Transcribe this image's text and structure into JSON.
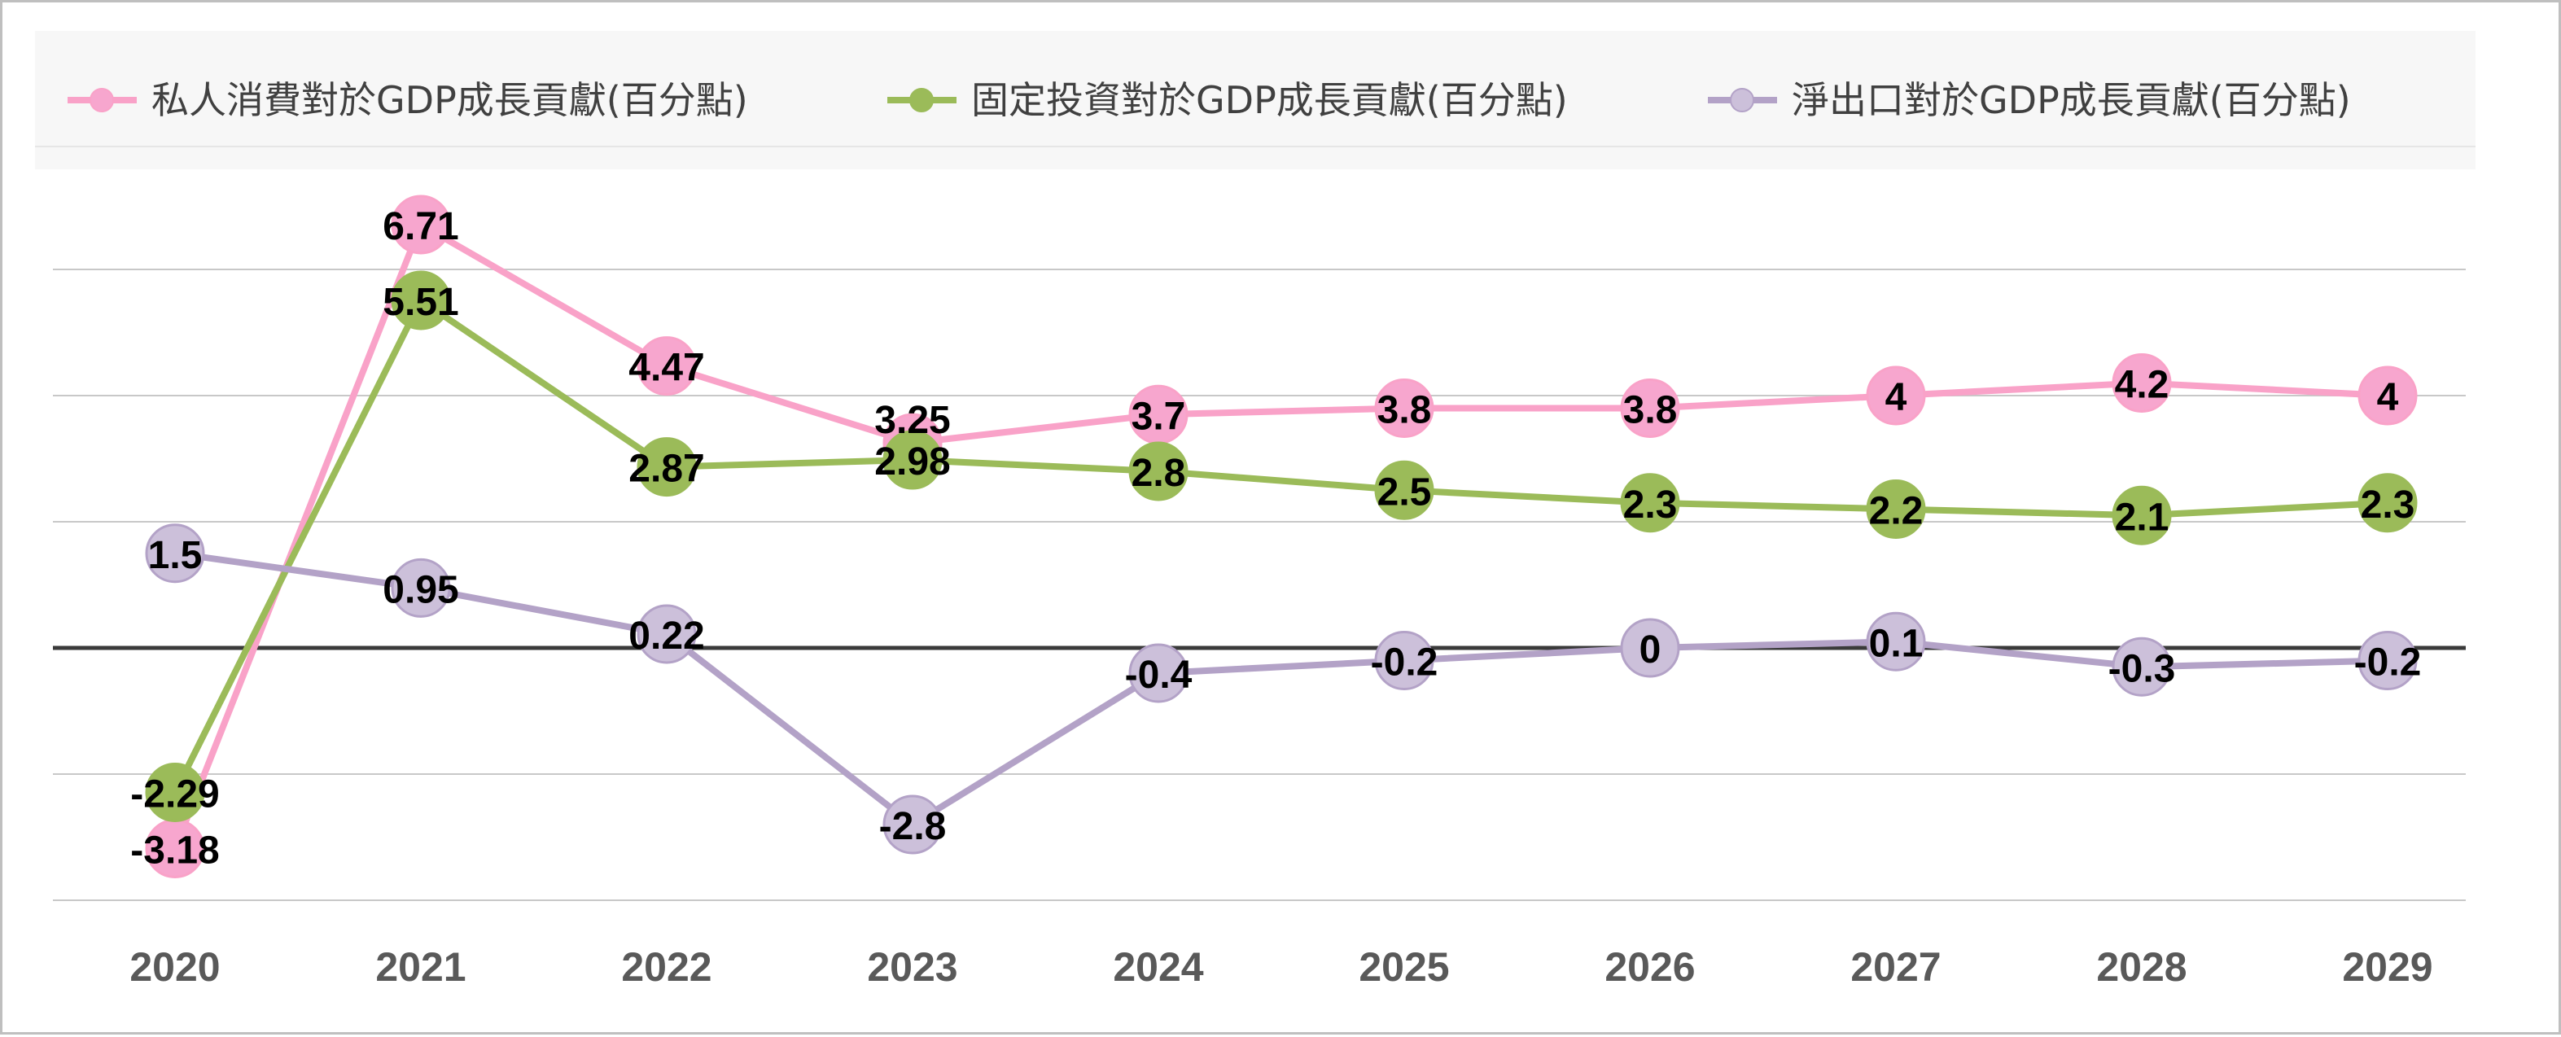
{
  "chart_data": {
    "type": "line",
    "categories": [
      "2020",
      "2021",
      "2022",
      "2023",
      "2024",
      "2025",
      "2026",
      "2027",
      "2028",
      "2029"
    ],
    "series": [
      {
        "name": "私人消費對於GDP成長貢獻(百分點)",
        "color": "#f9a2c8",
        "marker_color": "#f7a6ce",
        "values": [
          -3.18,
          6.71,
          4.47,
          3.25,
          3.7,
          3.8,
          3.8,
          4,
          4.2,
          4
        ],
        "labels": [
          "-3.18",
          "6.71",
          "4.47",
          "3.25",
          "3.7",
          "3.8",
          "3.8",
          "4",
          "4.2",
          "4"
        ]
      },
      {
        "name": "固定投資對於GDP成長貢獻(百分點)",
        "color": "#9bbb59",
        "marker_color": "#9bbb59",
        "values": [
          -2.29,
          5.51,
          2.87,
          2.98,
          2.8,
          2.5,
          2.3,
          2.2,
          2.1,
          2.3
        ],
        "labels": [
          "-2.29",
          "5.51",
          "2.87",
          "2.98",
          "2.8",
          "2.5",
          "2.3",
          "2.2",
          "2.1",
          "2.3"
        ]
      },
      {
        "name": "淨出口對於GDP成長貢獻(百分點)",
        "color": "#b3a2c7",
        "marker_color": "#ccc0da",
        "values": [
          1.5,
          0.95,
          0.22,
          -2.8,
          -0.4,
          -0.2,
          0,
          0.1,
          -0.3,
          -0.2
        ],
        "labels": [
          "1.5",
          "0.95",
          "0.22",
          "-2.8",
          "-0.4",
          "-0.2",
          "0",
          "0.1",
          "-0.3",
          "-0.2"
        ]
      }
    ],
    "ylim": [
      -4,
      8
    ],
    "gridlines": [
      -4,
      -2,
      2,
      4,
      6
    ],
    "zero_line": true,
    "grid": true,
    "legend_position": "top",
    "xlabel": "",
    "ylabel": ""
  }
}
